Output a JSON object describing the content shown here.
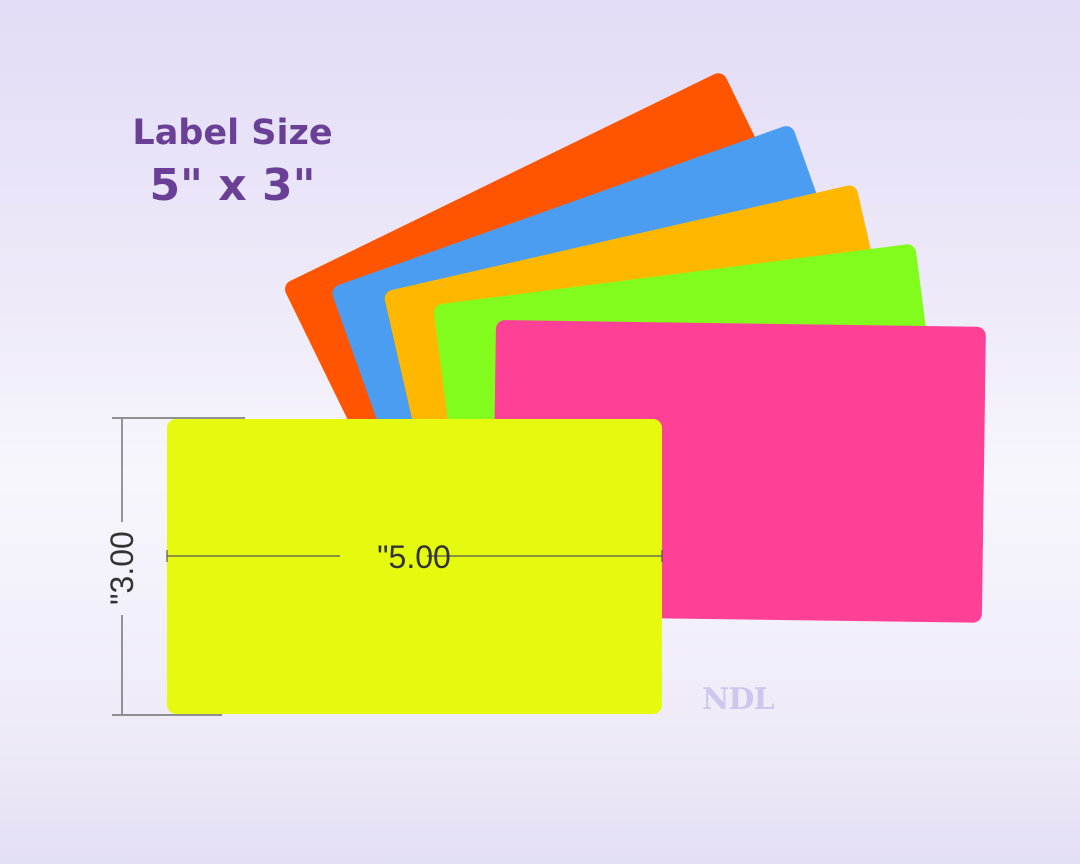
{
  "heading": {
    "line1": "Label Size",
    "line2": "5\" x 3\""
  },
  "labels": {
    "colors": {
      "orange": "#ff5500",
      "blue": "#4a9df0",
      "amber": "#ffb700",
      "green": "#82fc1c",
      "pink": "#ff4097",
      "lime": "#e6fa10"
    },
    "width_dimension": "\"5.00",
    "height_dimension": "\"3.00"
  },
  "watermark": "NDL"
}
